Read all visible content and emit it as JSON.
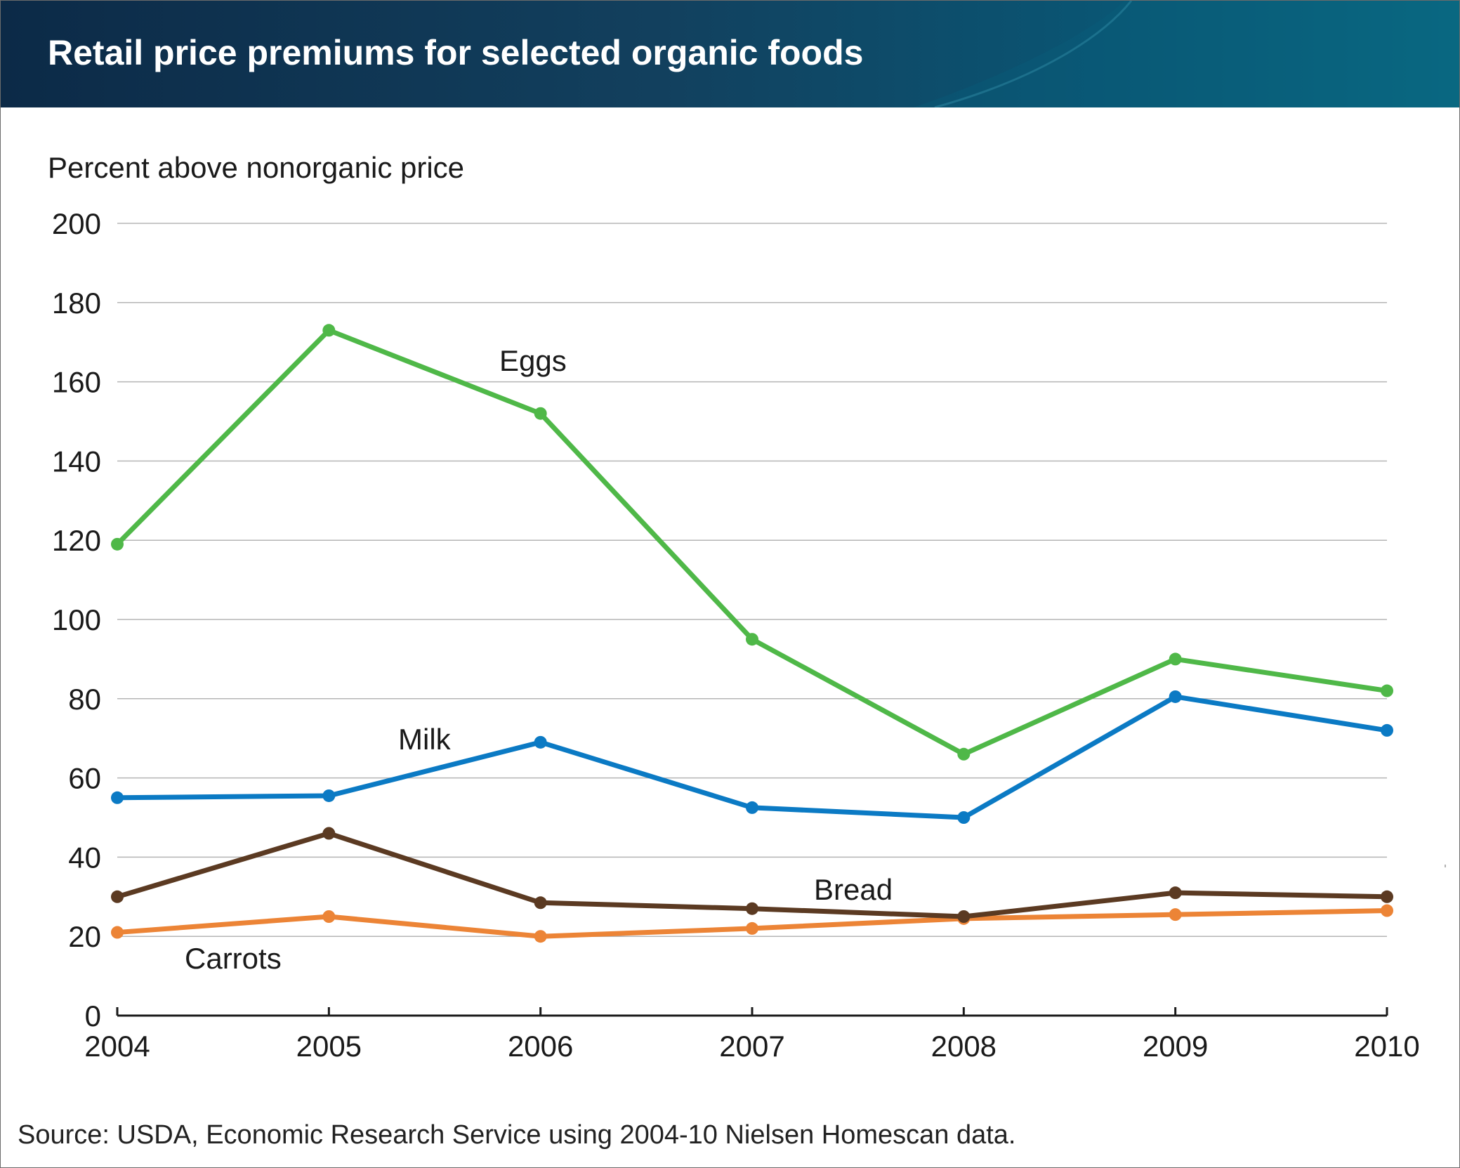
{
  "chart_data": {
    "type": "line",
    "title": "Retail price premiums for selected organic foods",
    "ylabel": "Percent above nonorganic price",
    "xlabel": "",
    "x": [
      "2004",
      "2005",
      "2006",
      "2007",
      "2008",
      "2009",
      "2010"
    ],
    "ylim": [
      0,
      200
    ],
    "yticks": [
      "0",
      "20",
      "40",
      "60",
      "80",
      "100",
      "120",
      "140",
      "160",
      "180",
      "200"
    ],
    "grid": true,
    "series": [
      {
        "name": "Eggs",
        "color": "#4fb848",
        "values": [
          119,
          173,
          152,
          95,
          66,
          90,
          82
        ]
      },
      {
        "name": "Milk",
        "color": "#0b7ac4",
        "values": [
          55,
          55.5,
          69,
          52.5,
          50,
          80.5,
          72
        ]
      },
      {
        "name": "Bread",
        "color": "#5b3a22",
        "values": [
          30,
          46,
          28.5,
          27,
          25,
          31,
          30
        ]
      },
      {
        "name": "Carrots",
        "color": "#ec8436",
        "values": [
          21,
          25,
          20,
          22,
          24.5,
          25.5,
          26.5
        ]
      }
    ],
    "source": "Source: USDA, Economic Research Service using 2004-10 Nielsen Homescan data."
  }
}
